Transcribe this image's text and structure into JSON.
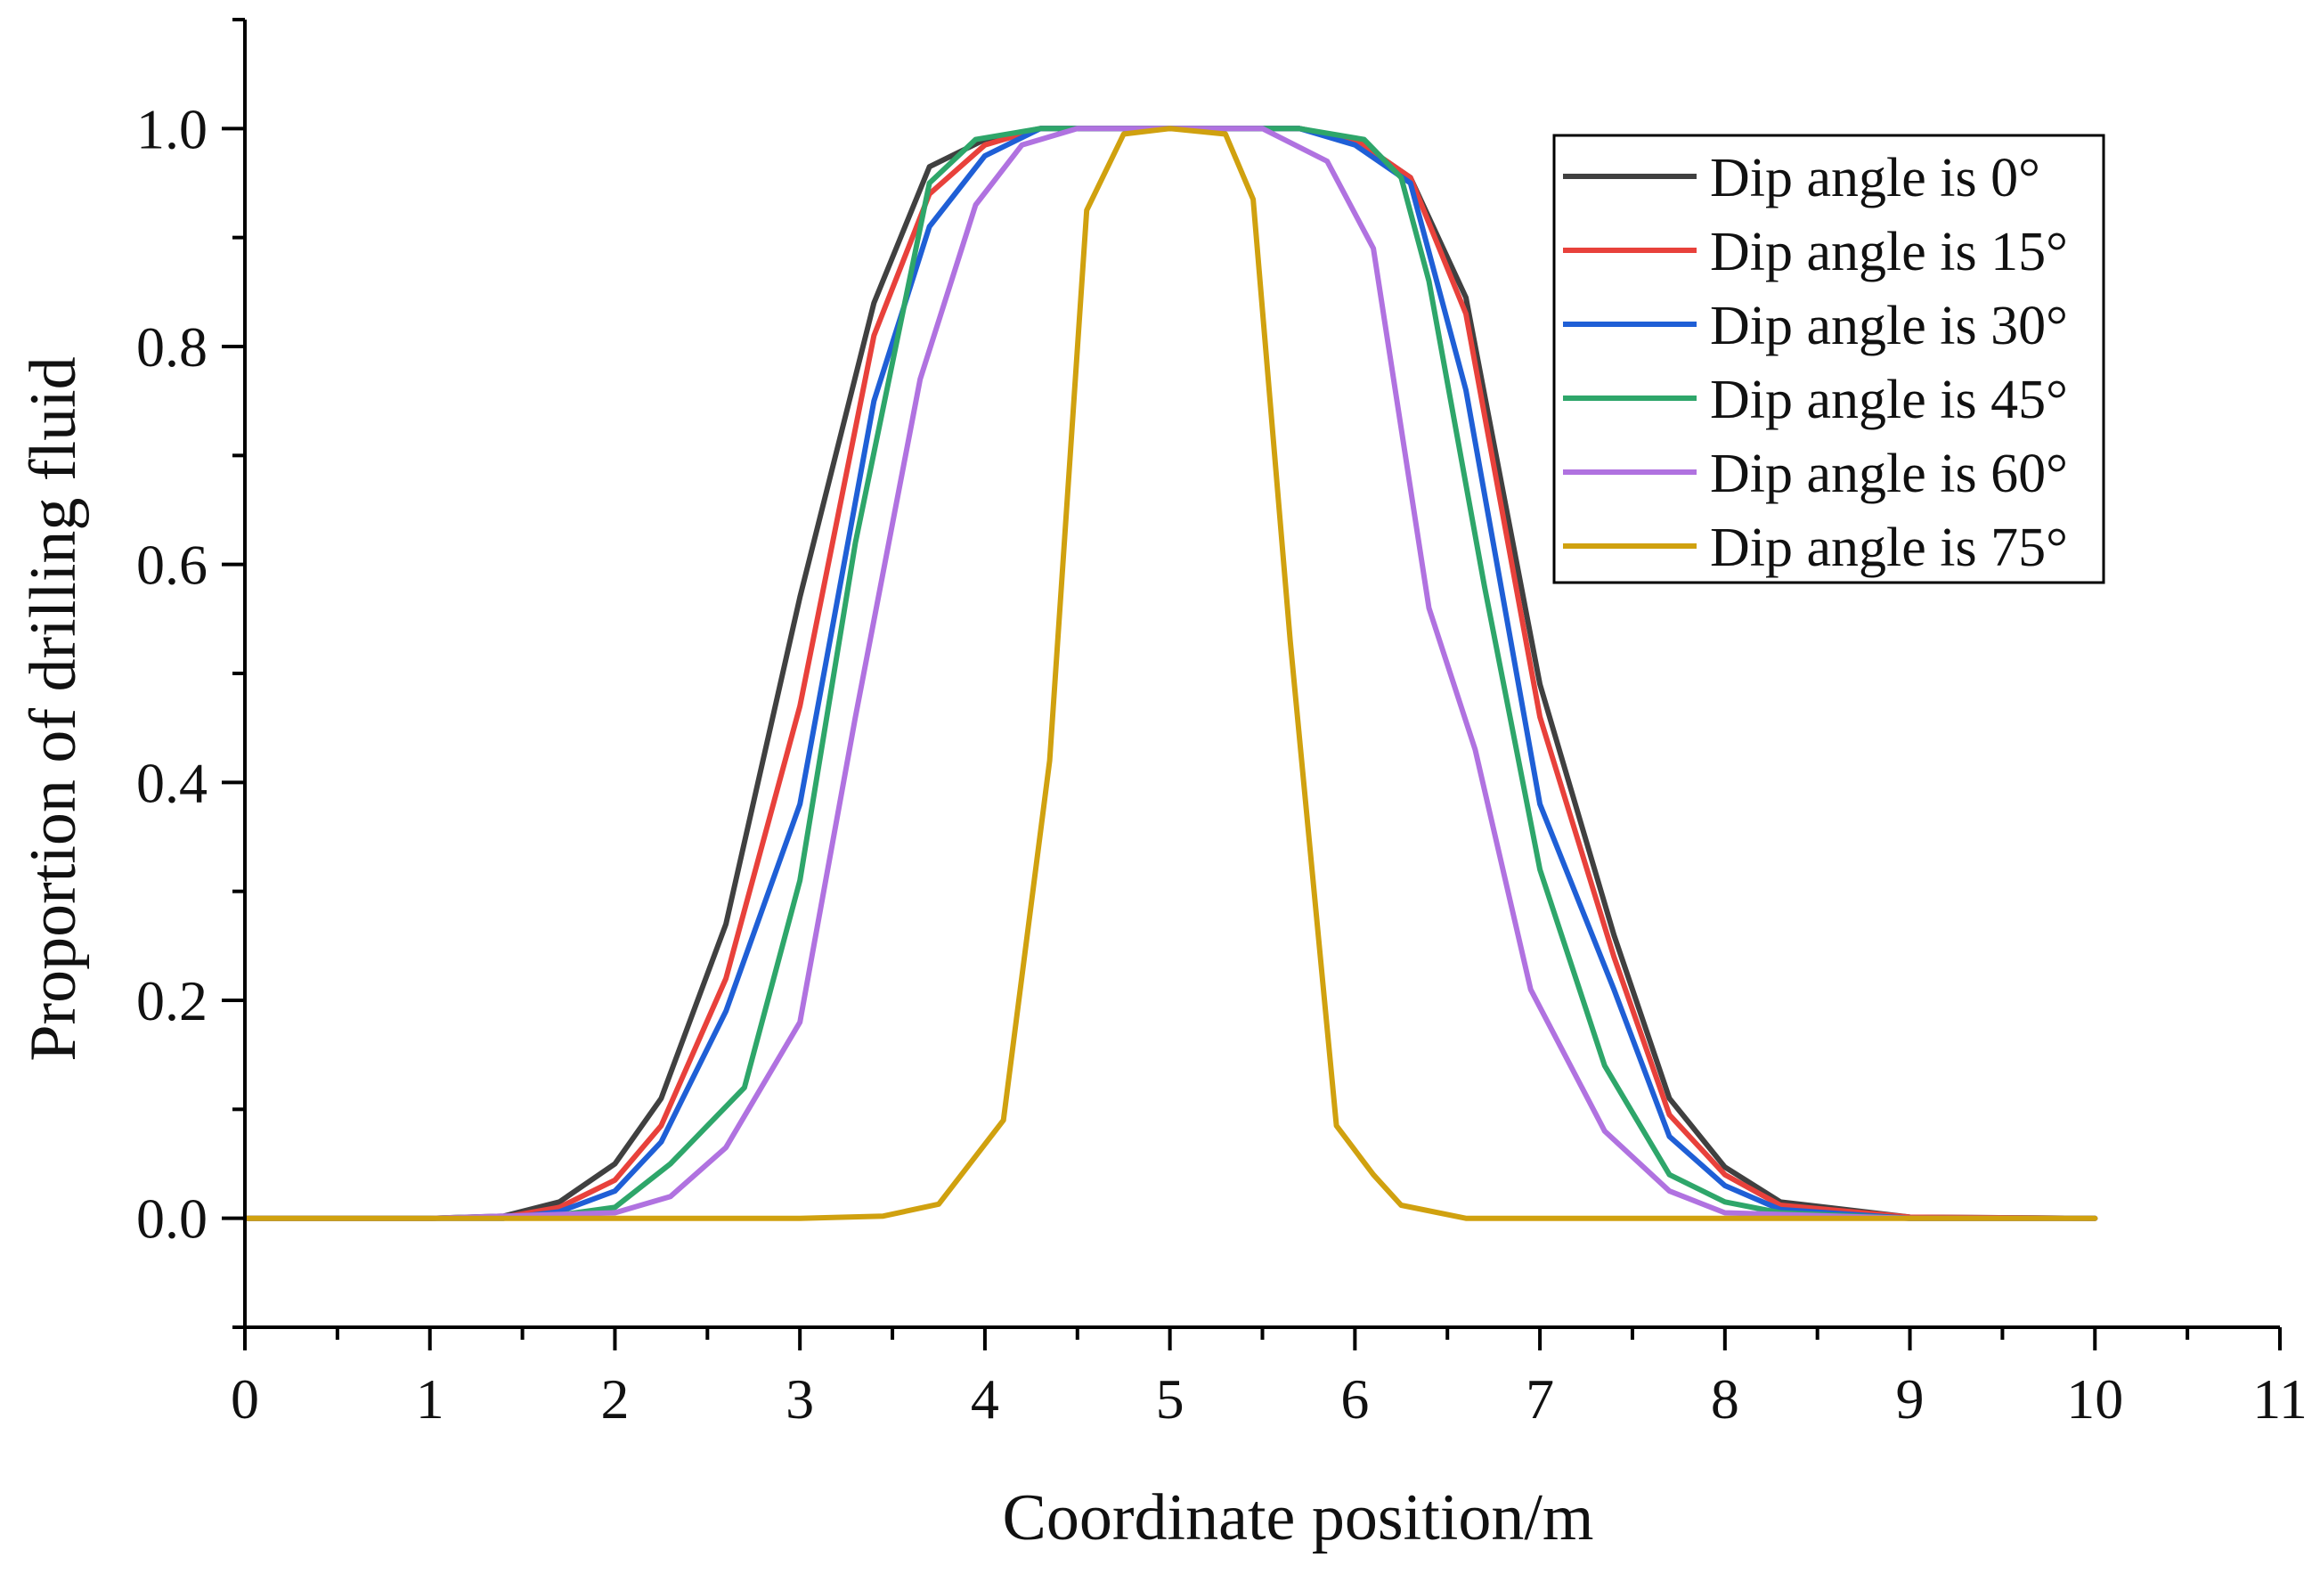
{
  "chart_data": {
    "type": "line",
    "title": "",
    "xlabel": "Coordinate position/m",
    "ylabel": "Proportion of drilling fluid",
    "xlim": [
      0,
      11
    ],
    "ylim": [
      -0.1,
      1.1
    ],
    "xticks": [
      "0",
      "1",
      "2",
      "3",
      "4",
      "5",
      "6",
      "7",
      "8",
      "9",
      "10",
      "11"
    ],
    "yticks": [
      "0.0",
      "0.2",
      "0.4",
      "0.6",
      "0.8",
      "1.0"
    ],
    "grid": false,
    "legend_position": "top-right",
    "series": [
      {
        "name": "Dip angle is 0°",
        "color": "#404040",
        "x": [
          0,
          0.5,
          1.0,
          1.4,
          1.7,
          2.0,
          2.25,
          2.6,
          3.0,
          3.4,
          3.7,
          4.0,
          4.3,
          5.0,
          5.7,
          6.0,
          6.3,
          6.6,
          7.0,
          7.4,
          7.7,
          8.0,
          8.3,
          9.0,
          10.0
        ],
        "y": [
          0,
          0,
          0,
          0.002,
          0.015,
          0.05,
          0.11,
          0.27,
          0.57,
          0.84,
          0.965,
          0.99,
          1.0,
          1.0,
          1.0,
          0.99,
          0.955,
          0.845,
          0.49,
          0.26,
          0.11,
          0.047,
          0.015,
          0.001,
          0
        ]
      },
      {
        "name": "Dip angle is 15°",
        "color": "#e8413b",
        "x": [
          0,
          1.0,
          1.4,
          1.7,
          2.0,
          2.25,
          2.6,
          3.0,
          3.4,
          3.7,
          4.0,
          4.3,
          5.0,
          5.7,
          6.0,
          6.3,
          6.6,
          7.0,
          7.4,
          7.7,
          8.0,
          8.3,
          9.0,
          10.0
        ],
        "y": [
          0,
          0,
          0.001,
          0.01,
          0.035,
          0.085,
          0.22,
          0.47,
          0.81,
          0.94,
          0.985,
          1.0,
          1.0,
          1.0,
          0.99,
          0.955,
          0.83,
          0.46,
          0.24,
          0.095,
          0.04,
          0.012,
          0.001,
          0
        ]
      },
      {
        "name": "Dip angle is 30°",
        "color": "#1f5fd6",
        "x": [
          0,
          1.0,
          1.4,
          1.7,
          2.0,
          2.25,
          2.6,
          3.0,
          3.4,
          3.7,
          4.0,
          4.3,
          5.0,
          5.7,
          6.0,
          6.3,
          6.6,
          7.0,
          7.4,
          7.7,
          8.0,
          8.3,
          9.0,
          10.0
        ],
        "y": [
          0,
          0,
          0,
          0.006,
          0.025,
          0.07,
          0.19,
          0.38,
          0.75,
          0.91,
          0.975,
          1.0,
          1.0,
          1.0,
          0.985,
          0.95,
          0.76,
          0.38,
          0.21,
          0.075,
          0.03,
          0.008,
          0,
          0
        ]
      },
      {
        "name": "Dip angle is 45°",
        "color": "#2ea66a",
        "x": [
          0,
          1.0,
          1.7,
          2.0,
          2.3,
          2.7,
          3.0,
          3.3,
          3.7,
          3.95,
          4.3,
          5.0,
          5.7,
          6.05,
          6.25,
          6.4,
          6.7,
          7.0,
          7.35,
          7.7,
          8.0,
          8.3,
          9.0,
          10.0
        ],
        "y": [
          0,
          0,
          0.003,
          0.01,
          0.05,
          0.12,
          0.31,
          0.62,
          0.95,
          0.99,
          1.0,
          1.0,
          1.0,
          0.99,
          0.955,
          0.86,
          0.58,
          0.32,
          0.14,
          0.04,
          0.015,
          0.005,
          0,
          0
        ]
      },
      {
        "name": "Dip angle is 60°",
        "color": "#b072e0",
        "x": [
          0,
          1.0,
          2.0,
          2.3,
          2.6,
          3.0,
          3.3,
          3.65,
          3.95,
          4.2,
          4.5,
          5.0,
          5.5,
          5.85,
          6.1,
          6.4,
          6.65,
          6.95,
          7.35,
          7.7,
          8.0,
          9.0,
          10.0
        ],
        "y": [
          0,
          0,
          0.005,
          0.02,
          0.065,
          0.18,
          0.46,
          0.77,
          0.93,
          0.985,
          1.0,
          1.0,
          1.0,
          0.97,
          0.89,
          0.56,
          0.43,
          0.21,
          0.08,
          0.025,
          0.005,
          0,
          0
        ]
      },
      {
        "name": "Dip angle is 75°",
        "color": "#d0a10f",
        "x": [
          0,
          1.0,
          2.0,
          3.0,
          3.45,
          3.75,
          4.1,
          4.35,
          4.55,
          4.75,
          5.0,
          5.3,
          5.45,
          5.65,
          5.9,
          6.1,
          6.25,
          6.6,
          7.0,
          8.0,
          9.0,
          10.0
        ],
        "y": [
          0,
          0,
          0,
          0,
          0.002,
          0.013,
          0.09,
          0.42,
          0.925,
          0.995,
          1.0,
          0.995,
          0.935,
          0.53,
          0.085,
          0.04,
          0.012,
          0.0,
          0,
          0,
          0,
          0
        ]
      }
    ]
  }
}
